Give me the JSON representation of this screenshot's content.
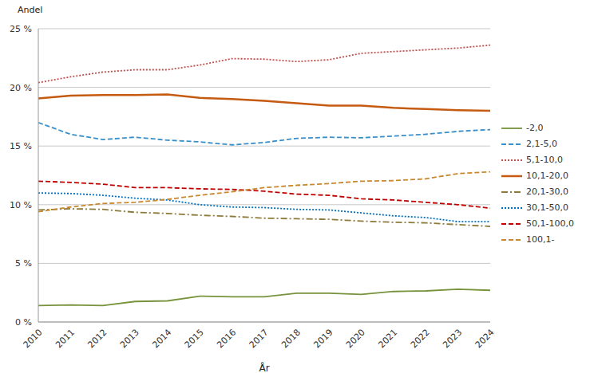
{
  "chart_data": {
    "type": "line",
    "y_label": "Andel",
    "x_label": "År",
    "categories": [
      "2010",
      "2011",
      "2012",
      "2013",
      "2014",
      "2015",
      "2016",
      "2017",
      "2018",
      "2019",
      "2020",
      "2021",
      "2022",
      "2023",
      "2024"
    ],
    "series": [
      {
        "name": "-2,0",
        "color": "#77933c",
        "line_style": "solid",
        "values": [
          1.4,
          1.45,
          1.4,
          1.75,
          1.8,
          2.2,
          2.15,
          2.15,
          2.45,
          2.45,
          2.35,
          2.6,
          2.65,
          2.8,
          2.7
        ]
      },
      {
        "name": "2,1-5,0",
        "color": "#3a8fc9",
        "line_style": "dashed",
        "values": [
          17.0,
          16.0,
          15.55,
          15.75,
          15.5,
          15.35,
          15.1,
          15.3,
          15.65,
          15.75,
          15.7,
          15.85,
          16.0,
          16.25,
          16.4
        ]
      },
      {
        "name": "5,1-10,0",
        "color": "#c0504d",
        "line_style": "dotted",
        "values": [
          20.4,
          20.9,
          21.3,
          21.5,
          21.5,
          21.9,
          22.45,
          22.4,
          22.2,
          22.35,
          22.9,
          23.05,
          23.2,
          23.35,
          23.6
        ]
      },
      {
        "name": "10,1-20,0",
        "color": "#c55a11",
        "line_style": "solid",
        "values": [
          19.05,
          19.3,
          19.35,
          19.35,
          19.4,
          19.1,
          19.0,
          18.85,
          18.65,
          18.45,
          18.45,
          18.25,
          18.15,
          18.05,
          18.0
        ]
      },
      {
        "name": "20,1-30,0",
        "color": "#8c7b3a",
        "line_style": "dashdot",
        "values": [
          9.55,
          9.65,
          9.6,
          9.35,
          9.25,
          9.1,
          9.0,
          8.85,
          8.8,
          8.75,
          8.6,
          8.5,
          8.45,
          8.3,
          8.15
        ]
      },
      {
        "name": "30,1-50,0",
        "color": "#0070c0",
        "line_style": "dotted",
        "values": [
          11.0,
          10.95,
          10.8,
          10.55,
          10.4,
          10.0,
          9.8,
          9.75,
          9.6,
          9.55,
          9.3,
          9.05,
          8.9,
          8.55,
          8.55
        ]
      },
      {
        "name": "50,1-100,0",
        "color": "#c00000",
        "line_style": "dashed",
        "values": [
          12.0,
          11.9,
          11.75,
          11.45,
          11.45,
          11.35,
          11.3,
          11.15,
          10.9,
          10.8,
          10.5,
          10.4,
          10.2,
          10.0,
          9.7
        ]
      },
      {
        "name": "100,1-",
        "color": "#c9882f",
        "line_style": "dashed",
        "values": [
          9.4,
          9.8,
          10.1,
          10.2,
          10.45,
          10.8,
          11.1,
          11.45,
          11.65,
          11.8,
          12.0,
          12.05,
          12.2,
          12.65,
          12.8
        ]
      }
    ],
    "ylim": [
      0,
      25
    ],
    "yticks": [
      {
        "value": 0,
        "label": "0 %"
      },
      {
        "value": 5,
        "label": "5 %"
      },
      {
        "value": 10,
        "label": "10 %"
      },
      {
        "value": 15,
        "label": "15 %"
      },
      {
        "value": 20,
        "label": "20 %"
      },
      {
        "value": 25,
        "label": "25 %"
      }
    ],
    "grid": true,
    "legend": "right"
  }
}
